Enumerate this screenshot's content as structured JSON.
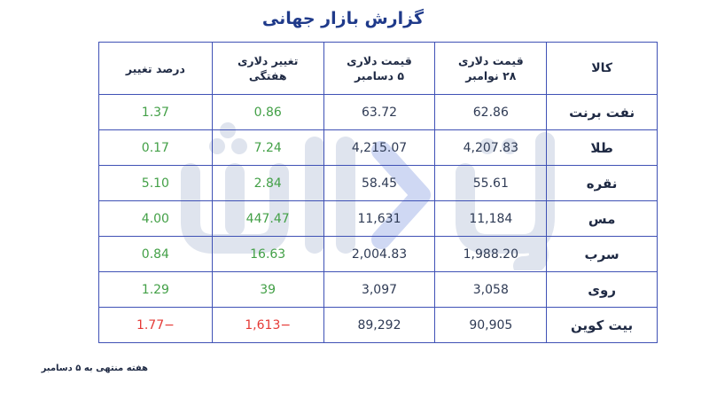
{
  "title": "گزارش بازار جهانی",
  "table": {
    "headers": [
      {
        "line1": "کالا",
        "line2": ""
      },
      {
        "line1": "قیمت دلاری",
        "line2": "۲۸ نوامبر"
      },
      {
        "line1": "قیمت دلاری",
        "line2": "۵ دسامبر"
      },
      {
        "line1": "تغییر دلاری",
        "line2": "هفتگی"
      },
      {
        "line1": "درصد تغییر",
        "line2": ""
      }
    ],
    "rows": [
      {
        "name": "نفت برنت",
        "price_nov28": "62.86",
        "price_dec5": "63.72",
        "weekly_change": "0.86",
        "percent_change": "1.37",
        "trend": "up"
      },
      {
        "name": "طلا",
        "price_nov28": "4,207.83",
        "price_dec5": "4,215.07",
        "weekly_change": "7.24",
        "percent_change": "0.17",
        "trend": "up"
      },
      {
        "name": "نقره",
        "price_nov28": "55.61",
        "price_dec5": "58.45",
        "weekly_change": "2.84",
        "percent_change": "5.10",
        "trend": "up"
      },
      {
        "name": "مس",
        "price_nov28": "11,184",
        "price_dec5": "11,631",
        "weekly_change": "447.47",
        "percent_change": "4.00",
        "trend": "up"
      },
      {
        "name": "سرب",
        "price_nov28": "1,988.20",
        "price_dec5": "2,004.83",
        "weekly_change": "16.63",
        "percent_change": "0.84",
        "trend": "up"
      },
      {
        "name": "روی",
        "price_nov28": "3,058",
        "price_dec5": "3,097",
        "weekly_change": "39",
        "percent_change": "1.29",
        "trend": "up"
      },
      {
        "name": "بیت کوین",
        "price_nov28": "90,905",
        "price_dec5": "89,292",
        "weekly_change": "−1,613",
        "percent_change": "−1.77",
        "trend": "down"
      }
    ]
  },
  "footnote": "هفته منتهی به ۵ دسامبر",
  "watermark": {
    "text": "یادداشت",
    "color": "#dfe4ee",
    "accent_color": "#cfd8f3"
  },
  "colors": {
    "positive": "#43a047",
    "negative": "#e53935",
    "border": "#3f51b5",
    "title": "#1f3a8a"
  }
}
